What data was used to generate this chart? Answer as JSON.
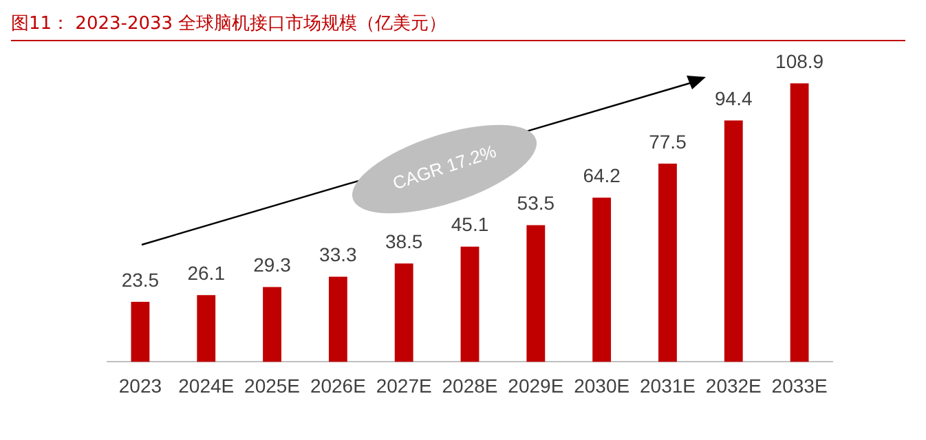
{
  "chart_data": {
    "type": "bar",
    "title": "图11：  2023-2033 全球脑机接口市场规模（亿美元）",
    "categories": [
      "2023",
      "2024E",
      "2025E",
      "2026E",
      "2027E",
      "2028E",
      "2029E",
      "2030E",
      "2031E",
      "2032E",
      "2033E"
    ],
    "values": [
      23.5,
      26.1,
      29.3,
      33.3,
      38.5,
      45.1,
      53.5,
      64.2,
      77.5,
      94.4,
      108.9
    ],
    "color": "#c00000",
    "data_labels": true,
    "grid": false,
    "legend": false,
    "tick_labels": "x",
    "annotations": [
      "CAGR 17.2%"
    ]
  }
}
